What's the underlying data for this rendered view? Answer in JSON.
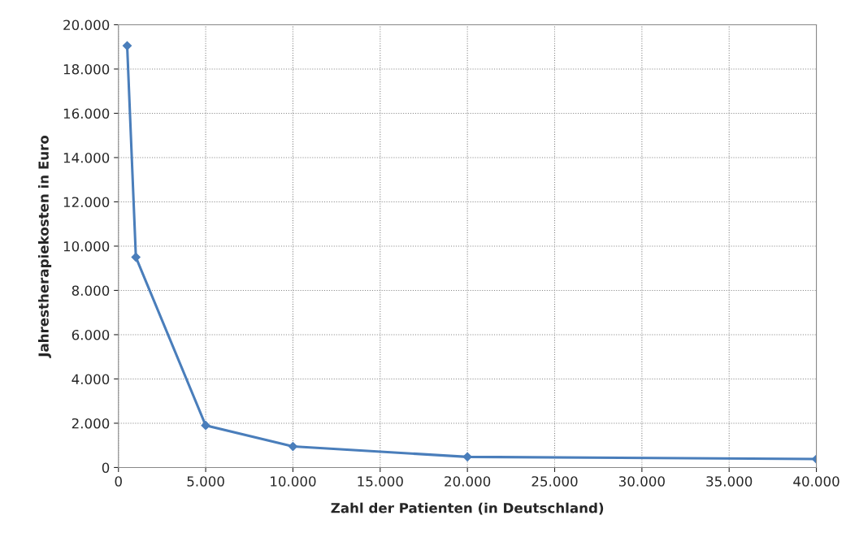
{
  "chart_data": {
    "type": "line",
    "xlabel": "Zahl der Patienten (in Deutschland)",
    "ylabel": "Jahrestherapiekosten in Euro",
    "x": [
      500,
      1000,
      5000,
      10000,
      20000,
      40000
    ],
    "series": [
      {
        "color": "#4a7ebb",
        "values": [
          19050,
          9500,
          1900,
          950,
          480,
          380
        ]
      }
    ],
    "xlim": [
      0,
      40000
    ],
    "ylim": [
      0,
      20000
    ],
    "xticks": [
      0,
      {
        "value": 5000,
        "label": "5.000"
      },
      {
        "value": 10000,
        "label": "10.000"
      },
      {
        "value": 15000,
        "label": "15.000"
      },
      {
        "value": 20000,
        "label": "20.000"
      },
      {
        "value": 25000,
        "label": "25.000"
      },
      {
        "value": 30000,
        "label": "30.000"
      },
      {
        "value": 35000,
        "label": "35.000"
      },
      {
        "value": 40000,
        "label": "40.000"
      }
    ],
    "yticks": [
      0,
      {
        "value": 2000,
        "label": "2.000"
      },
      {
        "value": 4000,
        "label": "4.000"
      },
      {
        "value": 6000,
        "label": "6.000"
      },
      {
        "value": 8000,
        "label": "8.000"
      },
      {
        "value": 10000,
        "label": "10.000"
      },
      {
        "value": 12000,
        "label": "12.000"
      },
      {
        "value": 14000,
        "label": "14.000"
      },
      {
        "value": 16000,
        "label": "16.000"
      },
      {
        "value": 18000,
        "label": "18.000"
      },
      {
        "value": 20000,
        "label": "20.000"
      }
    ],
    "grid": true,
    "marker": "diamond",
    "line_style": "solid"
  }
}
